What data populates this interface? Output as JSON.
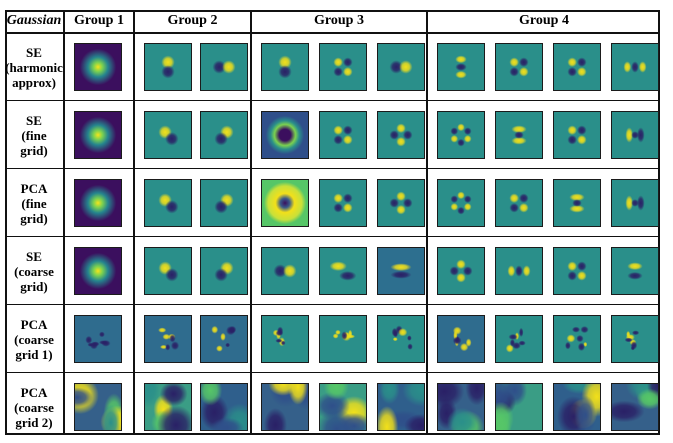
{
  "corner_label": "Gaussian",
  "groups": [
    "Group 1",
    "Group 2",
    "Group 3",
    "Group 4"
  ],
  "rows": [
    {
      "label_lines": [
        "SE",
        "(harmonic",
        "approx)"
      ],
      "cells": [
        "halo-dark",
        "dipole-v",
        "dipole-h",
        "dipole-v",
        "quad-x",
        "dipole-h",
        "tri-v",
        "quad-x",
        "quad-x",
        "tri-h"
      ]
    },
    {
      "label_lines": [
        "SE",
        "(fine",
        "grid)"
      ],
      "cells": [
        "halo-dark",
        "dipole-d",
        "dipole-d2",
        "ring-dark",
        "quad-x",
        "quad-d",
        "hex",
        "ring-open",
        "quad-x",
        "ring-open2"
      ]
    },
    {
      "label_lines": [
        "PCA",
        "(fine",
        "grid)"
      ],
      "cells": [
        "halo-dark",
        "dipole-d",
        "dipole-d2",
        "ring-yellow",
        "quad-x",
        "quad-d",
        "hex",
        "quad-x",
        "ring-open",
        "ring-open2"
      ]
    },
    {
      "label_lines": [
        "SE",
        "(coarse",
        "grid)"
      ],
      "cells": [
        "halo-dark",
        "dipole-d",
        "dipole-d2",
        "dipole-h",
        "stripe-d",
        "stripe-h",
        "quad-d",
        "tri-h",
        "quad-x",
        "stripe-d2"
      ]
    },
    {
      "label_lines": [
        "PCA",
        "(coarse",
        "grid 1)"
      ],
      "cells": [
        "noise-a",
        "noise-b",
        "noise-c",
        "noise-d",
        "noise-e",
        "noise-f",
        "noise-g",
        "noise-h",
        "noise-i",
        "noise-j"
      ]
    },
    {
      "label_lines": [
        "PCA",
        "(coarse",
        "grid 2)"
      ],
      "cells": [
        "blob-a",
        "blob-b",
        "blob-c",
        "blob-d",
        "blob-e",
        "blob-f",
        "blob-g",
        "blob-h",
        "blob-i",
        "blob-j"
      ]
    }
  ],
  "colors": {
    "teal": "#2a8f8a",
    "dark": "#3b0f5e",
    "yellow": "#f2e01a",
    "green": "#56c667",
    "blue": "#2f4f8a",
    "navy": "#2a2066"
  }
}
